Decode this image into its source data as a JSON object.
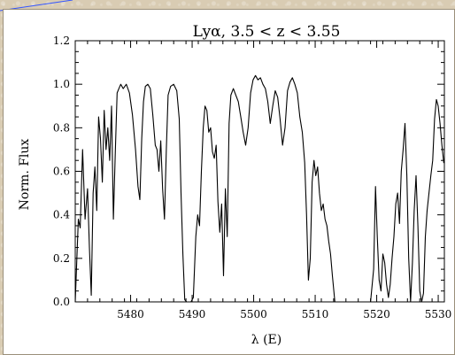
{
  "chart_data": {
    "type": "line",
    "title": "Lyα, 3.5 < z < 3.55",
    "xlabel": "λ (E)",
    "ylabel": "Norm. Flux",
    "xlim": [
      5471,
      5531
    ],
    "ylim": [
      0,
      1.2
    ],
    "xticks": [
      5480,
      5490,
      5500,
      5510,
      5520,
      5530
    ],
    "yticks": [
      0.0,
      0.2,
      0.4,
      0.6,
      0.8,
      1.0,
      1.2
    ],
    "xtick_labels": [
      "5480",
      "5490",
      "5500",
      "5510",
      "5520",
      "5530"
    ],
    "ytick_labels": [
      "0.0",
      "0.2",
      "0.4",
      "0.6",
      "0.8",
      "1.0",
      "1.2"
    ],
    "grid": false,
    "series": [
      {
        "color": "#000000",
        "x": [
          5471.0,
          5471.5,
          5471.8,
          5472.2,
          5472.6,
          5473.0,
          5473.3,
          5473.6,
          5473.9,
          5474.2,
          5474.5,
          5474.8,
          5475.1,
          5475.4,
          5475.7,
          5476.0,
          5476.3,
          5476.6,
          5476.9,
          5477.2,
          5477.5,
          5477.8,
          5478.1,
          5478.4,
          5478.8,
          5479.3,
          5479.8,
          5480.3,
          5480.8,
          5481.2,
          5481.5,
          5481.8,
          5482.1,
          5482.4,
          5482.8,
          5483.2,
          5483.6,
          5484.0,
          5484.3,
          5484.6,
          5484.9,
          5485.2,
          5485.5,
          5485.8,
          5486.1,
          5486.5,
          5487.0,
          5487.5,
          5487.9,
          5488.2,
          5488.5,
          5488.8,
          5489.1,
          5489.4,
          5489.8,
          5490.2,
          5490.6,
          5490.9,
          5491.2,
          5491.5,
          5491.8,
          5492.1,
          5492.4,
          5492.7,
          5493.0,
          5493.3,
          5493.6,
          5493.9,
          5494.2,
          5494.5,
          5494.8,
          5495.1,
          5495.4,
          5495.7,
          5496.0,
          5496.3,
          5496.7,
          5497.1,
          5497.5,
          5497.9,
          5498.3,
          5498.7,
          5499.1,
          5499.5,
          5499.9,
          5500.3,
          5500.7,
          5501.1,
          5501.5,
          5501.9,
          5502.3,
          5502.7,
          5503.1,
          5503.5,
          5503.9,
          5504.3,
          5504.7,
          5505.1,
          5505.5,
          5505.9,
          5506.3,
          5506.7,
          5507.1,
          5507.5,
          5507.9,
          5508.3,
          5508.6,
          5508.9,
          5509.2,
          5509.5,
          5509.8,
          5510.1,
          5510.4,
          5510.7,
          5511.0,
          5511.3,
          5511.6,
          5511.9,
          5512.2,
          5512.5,
          5512.8,
          5513.2,
          5514.0,
          5516.0,
          5518.0,
          5519.0,
          5519.5,
          5519.8,
          5520.1,
          5520.4,
          5520.7,
          5521.0,
          5521.3,
          5521.6,
          5521.9,
          5522.2,
          5522.5,
          5522.8,
          5523.1,
          5523.4,
          5523.7,
          5524.0,
          5524.3,
          5524.6,
          5524.9,
          5525.2,
          5525.5,
          5525.8,
          5526.1,
          5526.4,
          5526.7,
          5527.0,
          5527.3,
          5527.6,
          5527.9,
          5528.2,
          5528.5,
          5528.8,
          5529.1,
          5529.4,
          5529.7,
          5530.0,
          5530.3,
          5530.6,
          5530.9,
          5531.0
        ],
        "y": [
          0.0,
          0.38,
          0.34,
          0.7,
          0.38,
          0.52,
          0.25,
          0.03,
          0.5,
          0.62,
          0.42,
          0.85,
          0.75,
          0.55,
          0.88,
          0.7,
          0.8,
          0.65,
          0.9,
          0.38,
          0.68,
          0.96,
          0.98,
          1.0,
          0.98,
          1.0,
          0.96,
          0.86,
          0.7,
          0.53,
          0.47,
          0.75,
          0.92,
          0.99,
          1.0,
          0.98,
          0.86,
          0.72,
          0.7,
          0.6,
          0.74,
          0.52,
          0.38,
          0.7,
          0.95,
          0.99,
          1.0,
          0.97,
          0.84,
          0.5,
          0.22,
          0.01,
          0.0,
          0.0,
          0.0,
          0.02,
          0.3,
          0.4,
          0.35,
          0.6,
          0.8,
          0.9,
          0.88,
          0.78,
          0.8,
          0.69,
          0.66,
          0.72,
          0.46,
          0.32,
          0.45,
          0.12,
          0.52,
          0.3,
          0.82,
          0.95,
          0.98,
          0.95,
          0.92,
          0.85,
          0.78,
          0.72,
          0.8,
          0.96,
          1.02,
          1.04,
          1.02,
          1.03,
          1.0,
          0.98,
          0.92,
          0.82,
          0.9,
          0.97,
          0.94,
          0.84,
          0.72,
          0.8,
          0.97,
          1.01,
          1.03,
          1.0,
          0.96,
          0.85,
          0.78,
          0.64,
          0.4,
          0.1,
          0.2,
          0.55,
          0.65,
          0.58,
          0.62,
          0.5,
          0.42,
          0.45,
          0.38,
          0.35,
          0.28,
          0.22,
          0.12,
          0.0,
          0.0,
          0.0,
          0.0,
          0.0,
          0.15,
          0.53,
          0.3,
          0.1,
          0.05,
          0.22,
          0.18,
          0.08,
          0.02,
          0.08,
          0.2,
          0.3,
          0.45,
          0.5,
          0.36,
          0.6,
          0.7,
          0.82,
          0.58,
          0.2,
          0.0,
          0.18,
          0.42,
          0.58,
          0.35,
          0.05,
          0.0,
          0.04,
          0.3,
          0.42,
          0.5,
          0.58,
          0.65,
          0.84,
          0.93,
          0.9,
          0.82,
          0.72,
          0.64,
          0.65
        ]
      }
    ]
  },
  "colors": {
    "line": "#000000",
    "axis": "#000000",
    "corner_stroke": "#3355ff"
  }
}
